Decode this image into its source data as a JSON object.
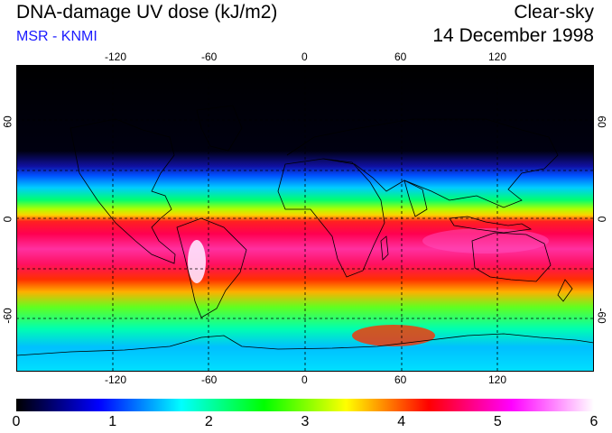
{
  "header": {
    "title": "DNA-damage UV dose (kJ/m2)",
    "subtitle": "MSR - KNMI",
    "scenario": "Clear-sky",
    "date": "14 December 1998"
  },
  "map": {
    "lon_ticks": [
      "-120",
      "-60",
      "0",
      "60",
      "120"
    ],
    "lat_ticks": [
      "60",
      "0",
      "-60"
    ]
  },
  "colorbar": {
    "labels": [
      "0",
      "1",
      "2",
      "3",
      "4",
      "5",
      "6"
    ],
    "min": 0,
    "max": 6,
    "colors": [
      "#000000",
      "#0000ff",
      "#00ffff",
      "#00ff00",
      "#ffff00",
      "#ff0000",
      "#ff00ff",
      "#ffffff"
    ]
  }
}
